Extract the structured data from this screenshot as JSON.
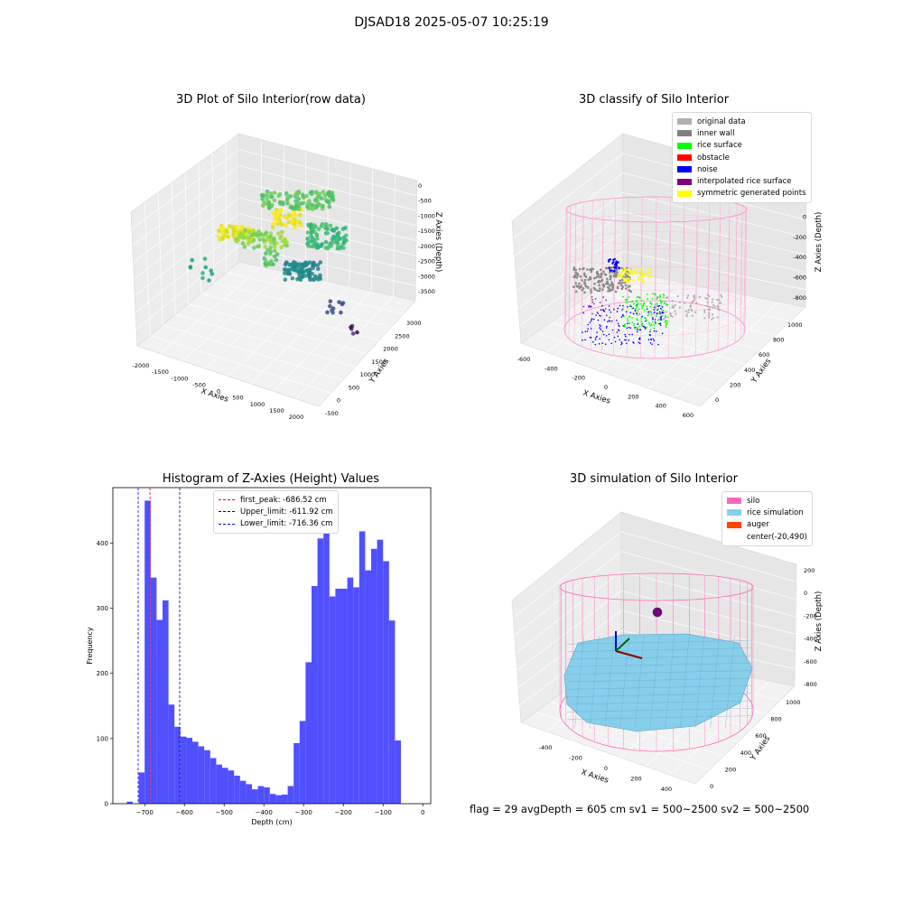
{
  "suptitle": "DJSAD18 2025-05-07 10:25:19",
  "status_line": "flag = 29  avgDepth = 605 cm  sv1 = 500~2500  sv2 = 500~2500",
  "chart_data": [
    {
      "type": "scatter",
      "title": "3D Plot of Silo Interior(row data)",
      "xlabel": "X Axies",
      "ylabel": "Y Axies",
      "zlabel": "Z Axies (Depth)",
      "x_ticks": [
        "-2000",
        "-1500",
        "-1000",
        "-500",
        "0",
        "500",
        "1000",
        "1500",
        "2000"
      ],
      "y_ticks": [
        "-500",
        "0",
        "500",
        "1000",
        "1500",
        "2000",
        "2500",
        "3000"
      ],
      "z_ticks": [
        "0",
        "-500",
        "-1000",
        "-1500",
        "-2000",
        "-2500",
        "-3000",
        "-3500"
      ],
      "xlim": [
        -2000,
        2000
      ],
      "ylim": [
        -500,
        3000
      ],
      "zlim": [
        -3500,
        0
      ],
      "colormap": "viridis"
    },
    {
      "type": "scatter",
      "title": "3D classify of Silo Interior",
      "xlabel": "X Axies",
      "ylabel": "Y Axies",
      "zlabel": "Z Axies (Depth)",
      "x_ticks": [
        "-600",
        "-400",
        "-200",
        "0",
        "200",
        "400",
        "600"
      ],
      "y_ticks": [
        "0",
        "200",
        "400",
        "600",
        "800",
        "1000"
      ],
      "z_ticks": [
        "200",
        "0",
        "-200",
        "-400",
        "-600",
        "-800"
      ],
      "legend": [
        {
          "label": "original data",
          "color": "#b0b0b0"
        },
        {
          "label": "inner wall",
          "color": "#808080"
        },
        {
          "label": "rice surface",
          "color": "#00ff00"
        },
        {
          "label": "obstacle",
          "color": "#ff0000"
        },
        {
          "label": "noise",
          "color": "#0000ff"
        },
        {
          "label": "interpolated rice surface",
          "color": "#800080"
        },
        {
          "label": "symmetric generated points",
          "color": "#ffff00"
        }
      ],
      "legend_position": "top-right"
    },
    {
      "type": "bar",
      "title": "Histogram of Z-Axies (Height) Values",
      "xlabel": "Depth (cm)",
      "ylabel": "Frequency",
      "xlim": [
        -780,
        20
      ],
      "ylim": [
        0,
        485
      ],
      "x_ticks": [
        -700,
        -600,
        -500,
        -400,
        -300,
        -200,
        -100,
        0
      ],
      "y_ticks": [
        0,
        100,
        200,
        300,
        400
      ],
      "bar_color": "#5050ff",
      "bin_start": -745,
      "bin_width": 15,
      "values": [
        3,
        0,
        48,
        465,
        347,
        282,
        312,
        152,
        118,
        103,
        101,
        95,
        88,
        82,
        70,
        60,
        55,
        51,
        43,
        35,
        30,
        22,
        27,
        25,
        15,
        13,
        14,
        27,
        93,
        127,
        217,
        334,
        407,
        425,
        318,
        330,
        330,
        347,
        332,
        418,
        358,
        391,
        405,
        372,
        281,
        97
      ],
      "vlines": [
        {
          "label": "first_peak: -686.52 cm",
          "x": -686.52,
          "color": "#ff0000"
        },
        {
          "label": "Upper_limit: -611.92 cm",
          "x": -611.92,
          "color": "#000080"
        },
        {
          "label": "Lower_limit: -716.36 cm",
          "x": -716.36,
          "color": "#0000ff"
        }
      ],
      "legend_position": "top-center"
    },
    {
      "type": "scatter",
      "title": "3D simulation of Silo Interior",
      "xlabel": "X Axies",
      "ylabel": "Y Axies",
      "zlabel": "Z Axies (Depth)",
      "x_ticks": [
        "-400",
        "-200",
        "0",
        "200",
        "400"
      ],
      "y_ticks": [
        "0",
        "200",
        "400",
        "600",
        "800",
        "1000"
      ],
      "z_ticks": [
        "200",
        "0",
        "-200",
        "-400",
        "-600",
        "-800"
      ],
      "legend": [
        {
          "label": "silo",
          "color": "#ff69b4"
        },
        {
          "label": "rice simulation",
          "color": "#87ceeb"
        },
        {
          "label": "auger",
          "color": "#ff4500"
        },
        {
          "label": "center(-20,490)",
          "color": "#ffffff"
        }
      ],
      "legend_position": "top-right"
    }
  ]
}
